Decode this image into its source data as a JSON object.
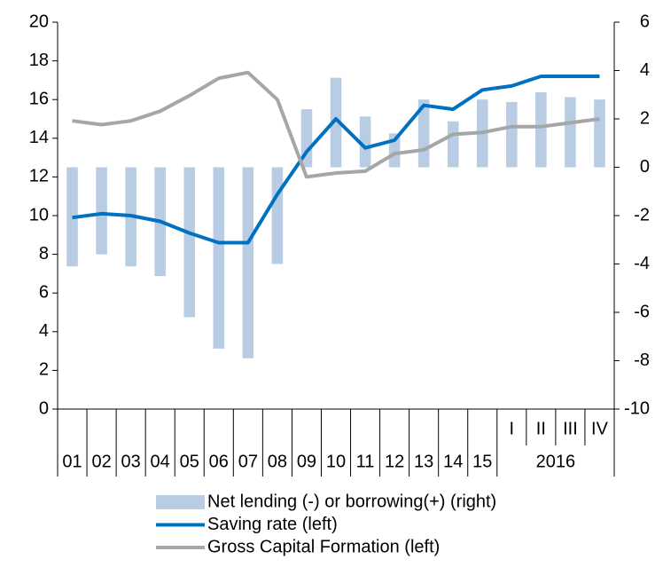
{
  "chart_data": {
    "type": "bar_line",
    "categories": [
      "01",
      "02",
      "03",
      "04",
      "05",
      "06",
      "07",
      "08",
      "09",
      "10",
      "11",
      "12",
      "13",
      "14",
      "15",
      "I",
      "II",
      "III",
      "IV"
    ],
    "group_label": "2016",
    "series": [
      {
        "name": "Net lending (-) or borrowing(+) (right)",
        "type": "bar",
        "axis": "y2",
        "color": "#b8cce4",
        "values": [
          -4.1,
          -3.6,
          -4.1,
          -4.5,
          -6.2,
          -7.5,
          -7.9,
          -4.0,
          2.4,
          3.7,
          2.1,
          1.4,
          2.8,
          1.9,
          2.8,
          2.7,
          3.1,
          2.9,
          2.8
        ]
      },
      {
        "name": "Saving rate (left)",
        "type": "line",
        "axis": "y",
        "color": "#0070c0",
        "values": [
          9.9,
          10.1,
          10.0,
          9.7,
          9.1,
          8.6,
          8.6,
          11.1,
          13.3,
          15.0,
          13.5,
          13.9,
          15.7,
          15.5,
          16.5,
          16.7,
          17.2,
          17.2,
          17.2
        ]
      },
      {
        "name": "Gross Capital Formation (left)",
        "type": "line",
        "axis": "y",
        "color": "#a6a6a6",
        "values": [
          14.9,
          14.7,
          14.9,
          15.4,
          16.2,
          17.1,
          17.4,
          16.0,
          12.0,
          12.2,
          12.3,
          13.2,
          13.4,
          14.2,
          14.3,
          14.6,
          14.6,
          14.8,
          15.0
        ]
      }
    ],
    "ylim": [
      0,
      20
    ],
    "yticks": [
      0,
      2,
      4,
      6,
      8,
      10,
      12,
      14,
      16,
      18,
      20
    ],
    "y2lim": [
      -10,
      6
    ],
    "y2ticks": [
      -10,
      -8,
      -6,
      -4,
      -2,
      0,
      2,
      4,
      6
    ],
    "legend": "bottom"
  }
}
